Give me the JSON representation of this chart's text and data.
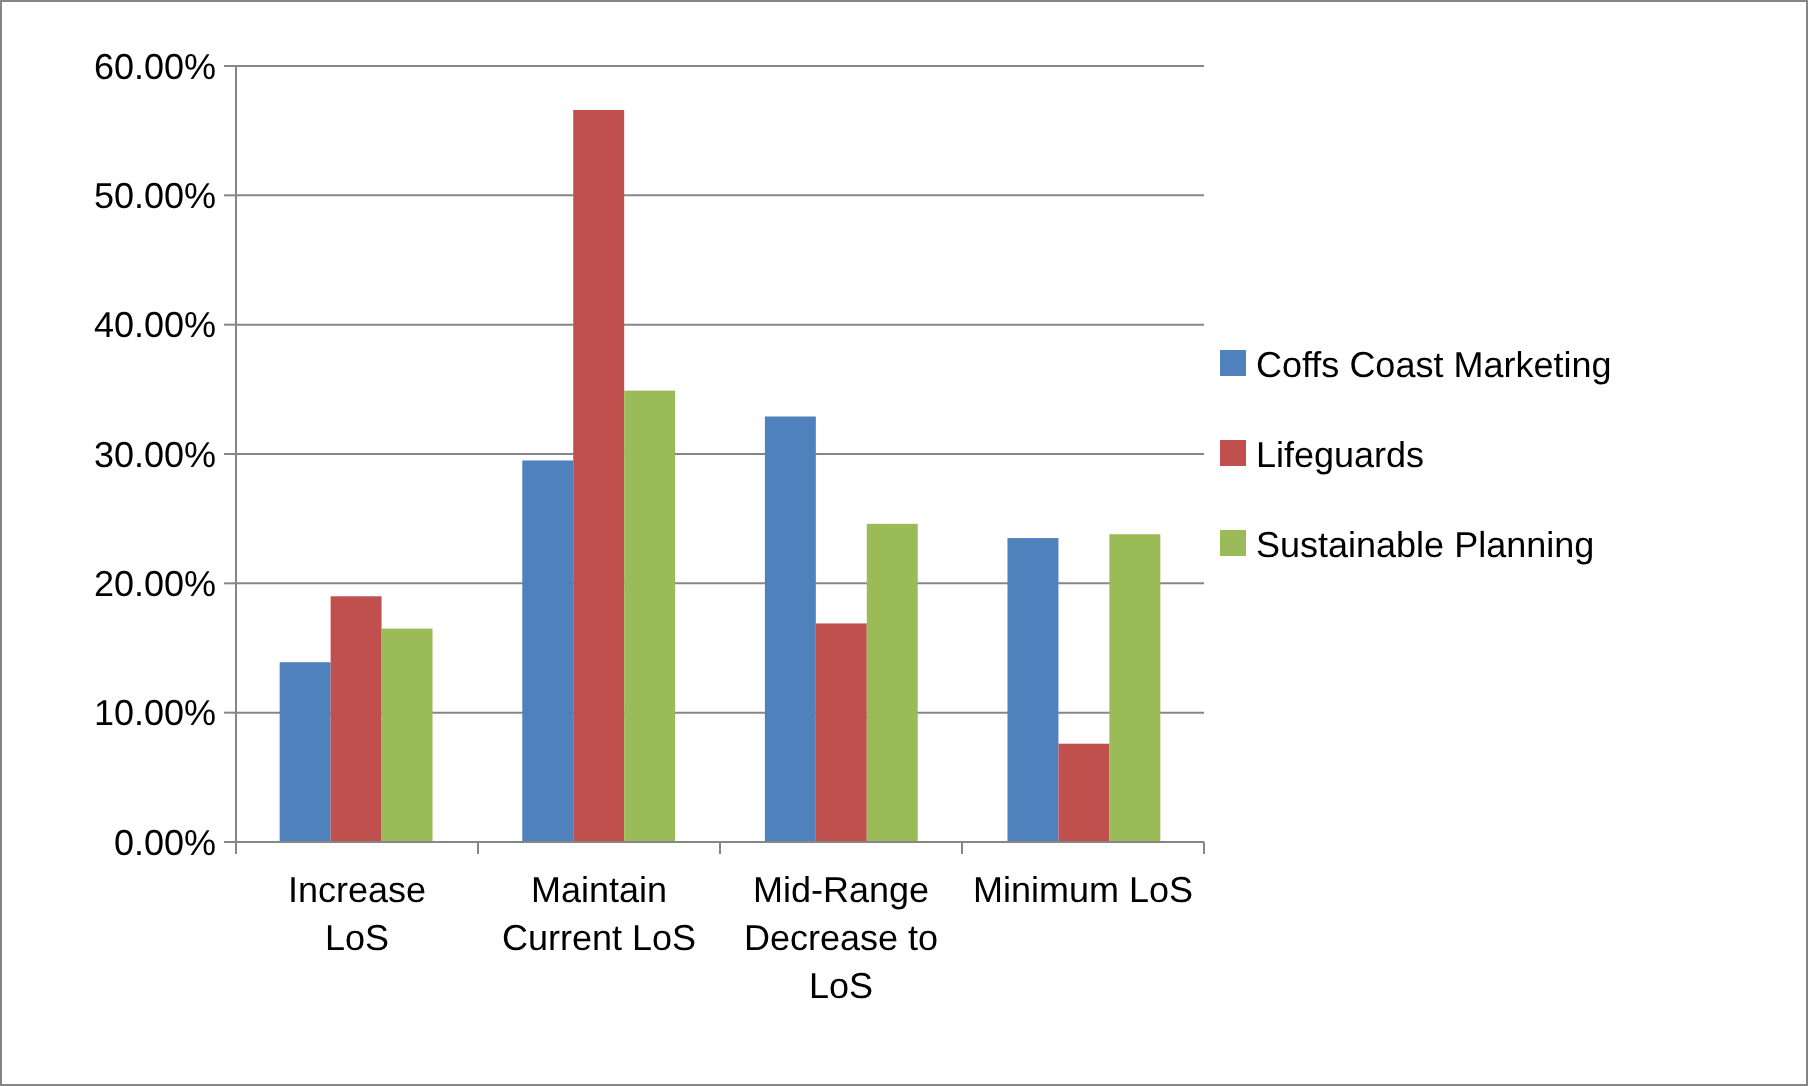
{
  "chart_data": {
    "type": "bar",
    "categories": [
      "Increase LoS",
      "Maintain Current LoS",
      "Mid-Range Decrease to LoS",
      "Minimum LoS"
    ],
    "series": [
      {
        "name": "Coffs Coast Marketing",
        "color": "#4f81bd",
        "values": [
          13.9,
          29.5,
          32.9,
          23.5
        ]
      },
      {
        "name": "Lifeguards",
        "color": "#c0504d",
        "values": [
          19.0,
          56.6,
          16.9,
          7.6
        ]
      },
      {
        "name": "Sustainable Planning",
        "color": "#9bbb59",
        "values": [
          16.5,
          34.9,
          24.6,
          23.8
        ]
      }
    ],
    "ylim": [
      0,
      60
    ],
    "yticks": [
      {
        "value": 0,
        "label": "0.00%"
      },
      {
        "value": 10,
        "label": "10.00%"
      },
      {
        "value": 20,
        "label": "20.00%"
      },
      {
        "value": 30,
        "label": "30.00%"
      },
      {
        "value": 40,
        "label": "40.00%"
      },
      {
        "value": 50,
        "label": "50.00%"
      },
      {
        "value": 60,
        "label": "60.00%"
      }
    ],
    "grid": "y",
    "legend": "right"
  }
}
